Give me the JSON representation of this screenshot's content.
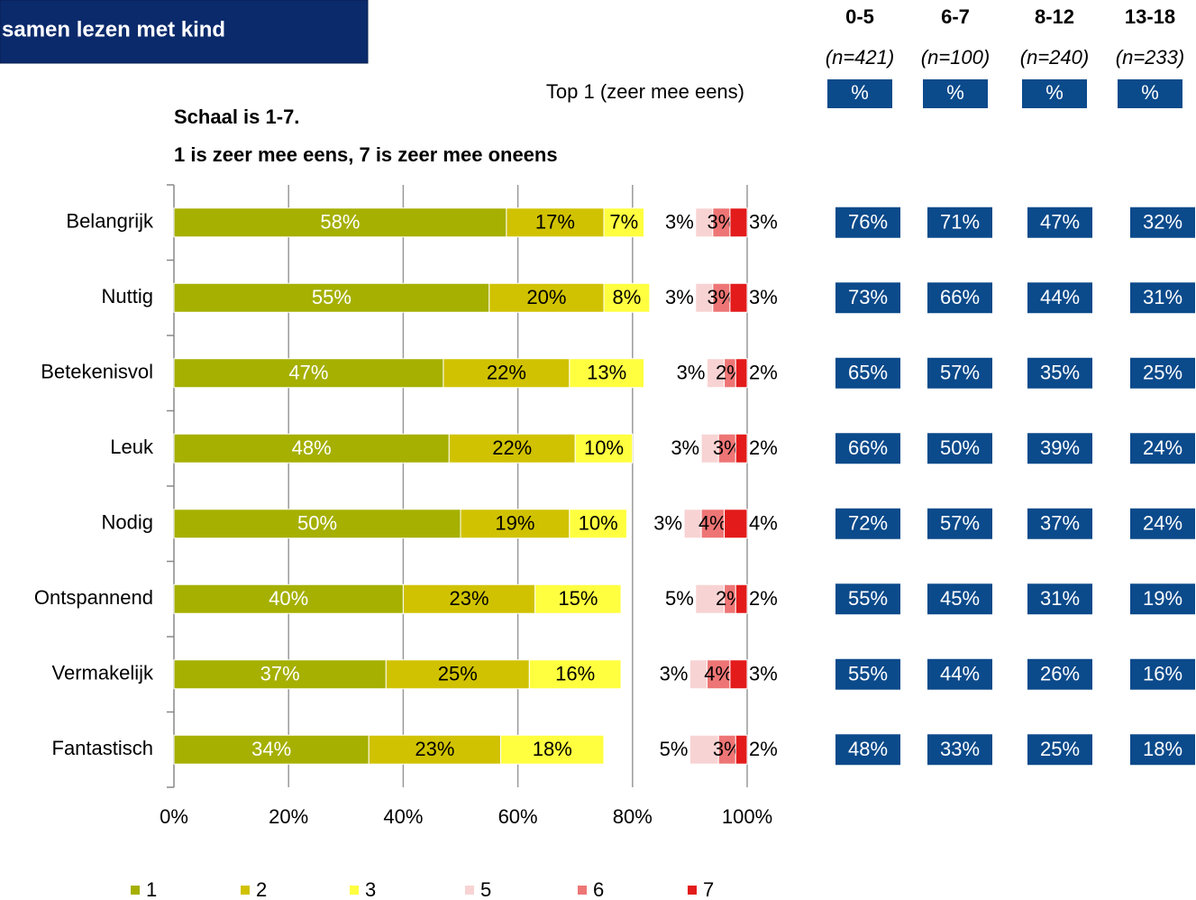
{
  "banner": "samen lezen met kind",
  "chart_data": {
    "type": "stacked-bar-horizontal",
    "subtitle": [
      "Schaal is 1-7.",
      "1 is zeer mee eens, 7 is zeer mee oneens"
    ],
    "categories": [
      "Belangrijk",
      "Nuttig",
      "Betekenisvol",
      "Leuk",
      "Nodig",
      "Ontspannend",
      "Vermakelijk",
      "Fantastisch"
    ],
    "series": [
      {
        "name": "1",
        "color": "#a5b000",
        "stack": "left",
        "values": [
          58,
          55,
          47,
          48,
          50,
          40,
          37,
          34
        ],
        "value_labels": [
          "58%",
          "55%",
          "47%",
          "48%",
          "50%",
          "40%",
          "37%",
          "34%"
        ]
      },
      {
        "name": "2",
        "color": "#d0c200",
        "stack": "left",
        "values": [
          17,
          20,
          22,
          22,
          19,
          23,
          25,
          23
        ],
        "value_labels": [
          "17%",
          "20%",
          "22%",
          "22%",
          "19%",
          "23%",
          "25%",
          "23%"
        ]
      },
      {
        "name": "3",
        "color": "#ffff40",
        "stack": "left",
        "values": [
          7,
          8,
          13,
          10,
          10,
          15,
          16,
          18
        ],
        "value_labels": [
          "7%",
          "8%",
          "13%",
          "10%",
          "10%",
          "15%",
          "16%",
          "18%"
        ]
      },
      {
        "name": "5",
        "color": "#f8d3d3",
        "stack": "right",
        "values": [
          3,
          3,
          3,
          3,
          3,
          5,
          3,
          5
        ],
        "value_labels": [
          "3%",
          "3%",
          "3%",
          "3%",
          "3%",
          "5%",
          "3%",
          "5%"
        ]
      },
      {
        "name": "6",
        "color": "#ee7575",
        "stack": "right",
        "values": [
          3,
          3,
          2,
          3,
          4,
          2,
          4,
          3
        ],
        "value_labels": [
          "3%",
          "3%",
          "2%",
          "3%",
          "4%",
          "2%",
          "4%",
          "3%"
        ]
      },
      {
        "name": "7",
        "color": "#e31b1b",
        "stack": "right",
        "values": [
          3,
          3,
          2,
          2,
          4,
          2,
          3,
          2
        ],
        "value_labels": [
          "3%",
          "3%",
          "2%",
          "2%",
          "4%",
          "2%",
          "3%",
          "2%"
        ]
      }
    ],
    "xlim": [
      0,
      100
    ],
    "xticks": [
      {
        "value": 0,
        "label": "0%"
      },
      {
        "value": 20,
        "label": "20%"
      },
      {
        "value": 40,
        "label": "40%"
      },
      {
        "value": 60,
        "label": "60%"
      },
      {
        "value": 80,
        "label": "80%"
      },
      {
        "value": 100,
        "label": "100%"
      }
    ],
    "grid": true
  },
  "table": {
    "title": "Top 1 (zeer mee eens)",
    "columns": [
      {
        "group": "0-5",
        "n": "(n=421)",
        "unit": "%"
      },
      {
        "group": "6-7",
        "n": "(n=100)",
        "unit": "%"
      },
      {
        "group": "8-12",
        "n": "(n=240)",
        "unit": "%"
      },
      {
        "group": "13-18",
        "n": "(n=233)",
        "unit": "%"
      }
    ],
    "rows": [
      [
        "76%",
        "71%",
        "47%",
        "32%"
      ],
      [
        "73%",
        "66%",
        "44%",
        "31%"
      ],
      [
        "65%",
        "57%",
        "35%",
        "25%"
      ],
      [
        "66%",
        "50%",
        "39%",
        "24%"
      ],
      [
        "72%",
        "57%",
        "37%",
        "24%"
      ],
      [
        "55%",
        "45%",
        "31%",
        "19%"
      ],
      [
        "55%",
        "44%",
        "26%",
        "16%"
      ],
      [
        "48%",
        "33%",
        "25%",
        "18%"
      ]
    ]
  }
}
